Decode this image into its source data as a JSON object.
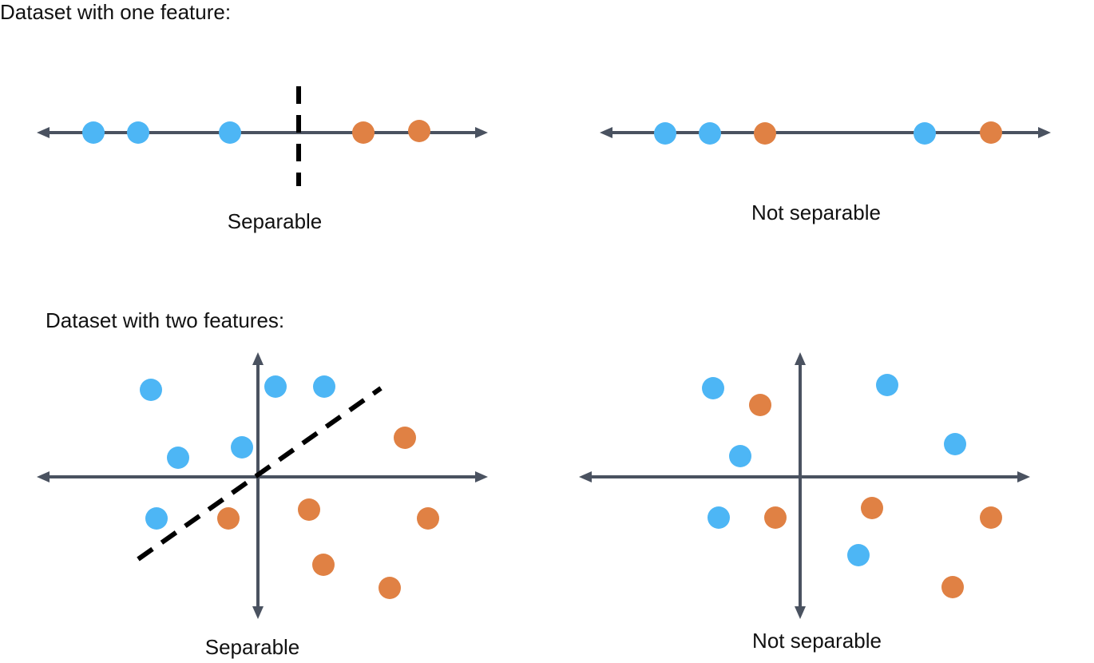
{
  "sections": {
    "one_feature": {
      "title": "Dataset with one feature:"
    },
    "two_features": {
      "title": "Dataset with two features:"
    }
  },
  "panels": [
    {
      "caption": "Separable"
    },
    {
      "caption": "Not separable"
    },
    {
      "caption": "Separable"
    },
    {
      "caption": "Not separable"
    }
  ],
  "colors": {
    "class_a": "#4DB6F5",
    "class_b": "#E08144",
    "axis": "#4A5260",
    "boundary": "#000000"
  },
  "icons": {
    "axis_arrow": "arrowhead",
    "point": "circle-marker"
  }
}
